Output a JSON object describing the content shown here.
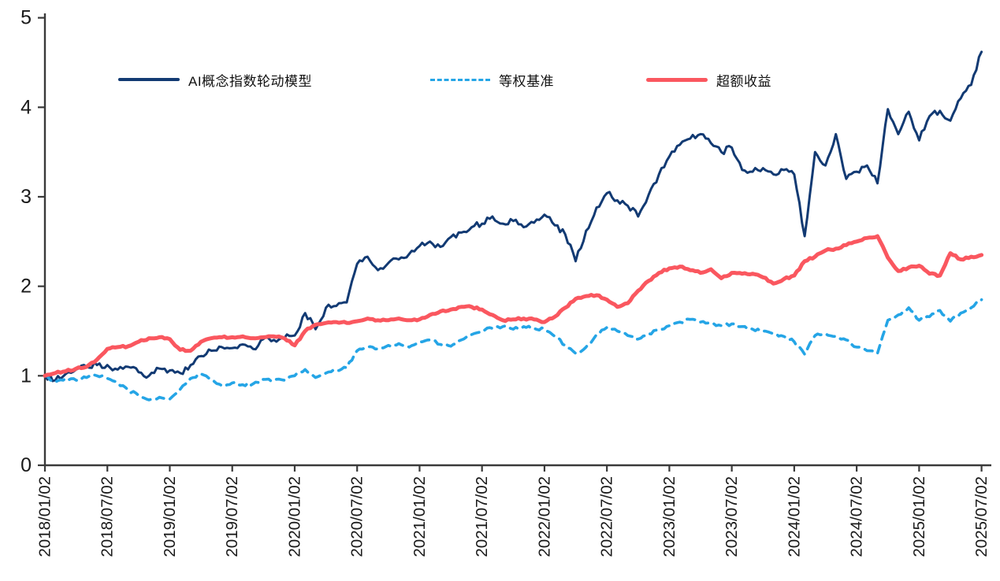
{
  "chart_data": {
    "type": "line",
    "title": "",
    "grid": false,
    "legend_position": "top",
    "x_axis": {
      "unit": "date",
      "tick_labels": [
        "2018/01/02",
        "2018/07/02",
        "2019/01/02",
        "2019/07/02",
        "2020/01/02",
        "2020/07/02",
        "2021/01/02",
        "2021/07/02",
        "2022/01/02",
        "2022/07/02",
        "2023/01/02",
        "2023/07/02",
        "2024/01/02",
        "2024/07/02",
        "2025/01/02",
        "2025/07/02"
      ],
      "tick_month_index": [
        0,
        6,
        12,
        18,
        24,
        30,
        36,
        42,
        48,
        54,
        60,
        66,
        72,
        78,
        84,
        90
      ],
      "month_count": 90
    },
    "y_axis": {
      "ticks": [
        "0",
        "1",
        "2",
        "3",
        "4",
        "5"
      ],
      "range": [
        0,
        5
      ]
    },
    "series": [
      {
        "name": "AI概念指数轮动模型",
        "color": "#123A73",
        "style": "solid",
        "width": 3,
        "values": [
          1.0,
          0.95,
          1.02,
          1.07,
          1.1,
          1.12,
          1.12,
          1.07,
          1.1,
          1.04,
          1.0,
          1.08,
          1.06,
          1.03,
          1.12,
          1.22,
          1.28,
          1.32,
          1.31,
          1.35,
          1.3,
          1.41,
          1.4,
          1.42,
          1.45,
          1.7,
          1.52,
          1.76,
          1.78,
          1.82,
          2.25,
          2.33,
          2.18,
          2.26,
          2.3,
          2.36,
          2.45,
          2.5,
          2.44,
          2.55,
          2.6,
          2.66,
          2.7,
          2.78,
          2.7,
          2.73,
          2.66,
          2.71,
          2.8,
          2.68,
          2.58,
          2.28,
          2.62,
          2.88,
          3.04,
          2.96,
          2.9,
          2.78,
          3.02,
          3.25,
          3.45,
          3.58,
          3.65,
          3.7,
          3.6,
          3.5,
          3.55,
          3.3,
          3.28,
          3.32,
          3.25,
          3.3,
          3.25,
          2.56,
          3.5,
          3.35,
          3.7,
          3.2,
          3.28,
          3.35,
          3.15,
          3.98,
          3.7,
          3.95,
          3.63,
          3.9,
          3.96,
          3.85,
          4.1,
          4.25,
          4.62
        ]
      },
      {
        "name": "等权基准",
        "color": "#25A5E6",
        "style": "dashed",
        "width": 3.6,
        "values": [
          1.0,
          0.93,
          0.97,
          0.95,
          0.98,
          1.0,
          0.97,
          0.92,
          0.84,
          0.78,
          0.73,
          0.76,
          0.74,
          0.85,
          0.97,
          1.02,
          0.95,
          0.89,
          0.92,
          0.9,
          0.91,
          0.96,
          0.95,
          0.95,
          1.0,
          1.07,
          0.98,
          1.03,
          1.06,
          1.09,
          1.28,
          1.32,
          1.3,
          1.34,
          1.36,
          1.32,
          1.38,
          1.4,
          1.35,
          1.33,
          1.4,
          1.46,
          1.51,
          1.53,
          1.55,
          1.52,
          1.55,
          1.53,
          1.52,
          1.44,
          1.34,
          1.25,
          1.32,
          1.46,
          1.54,
          1.5,
          1.45,
          1.41,
          1.47,
          1.51,
          1.56,
          1.6,
          1.63,
          1.6,
          1.58,
          1.56,
          1.58,
          1.55,
          1.52,
          1.5,
          1.47,
          1.44,
          1.38,
          1.24,
          1.45,
          1.47,
          1.44,
          1.4,
          1.32,
          1.28,
          1.25,
          1.62,
          1.68,
          1.76,
          1.62,
          1.66,
          1.73,
          1.61,
          1.7,
          1.76,
          1.85
        ]
      },
      {
        "name": "超额收益",
        "color": "#FA575F",
        "style": "solid",
        "width": 5,
        "values": [
          1.0,
          1.03,
          1.05,
          1.08,
          1.1,
          1.18,
          1.3,
          1.32,
          1.33,
          1.38,
          1.42,
          1.43,
          1.41,
          1.29,
          1.28,
          1.38,
          1.42,
          1.43,
          1.43,
          1.44,
          1.42,
          1.43,
          1.44,
          1.42,
          1.34,
          1.5,
          1.57,
          1.59,
          1.6,
          1.59,
          1.61,
          1.64,
          1.62,
          1.62,
          1.64,
          1.62,
          1.63,
          1.68,
          1.72,
          1.74,
          1.77,
          1.77,
          1.74,
          1.68,
          1.62,
          1.63,
          1.64,
          1.63,
          1.6,
          1.66,
          1.76,
          1.86,
          1.89,
          1.9,
          1.85,
          1.77,
          1.81,
          1.95,
          2.06,
          2.15,
          2.2,
          2.22,
          2.18,
          2.15,
          2.19,
          2.09,
          2.15,
          2.14,
          2.14,
          2.1,
          2.03,
          2.08,
          2.12,
          2.28,
          2.33,
          2.4,
          2.42,
          2.46,
          2.5,
          2.54,
          2.56,
          2.32,
          2.17,
          2.21,
          2.23,
          2.14,
          2.12,
          2.37,
          2.3,
          2.33,
          2.35
        ]
      }
    ],
    "colors": {
      "axis": "#3a3a3a",
      "tick_text": "#1a1a1a"
    }
  }
}
